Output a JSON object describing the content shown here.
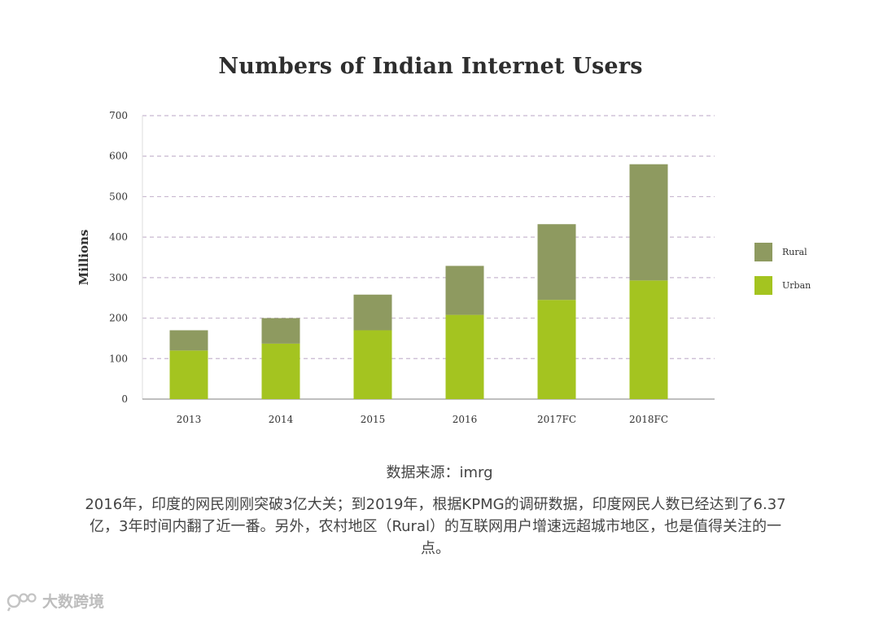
{
  "source_text": "数据来源：imrg",
  "caption": "2016年，印度的网民刚刚突破3亿大关；到2019年，根据KPMG的调研数据，印度网民人数已经达到了6.37亿，3年时间内翻了近一番。另外，农村地区（Rural）的互联网用户增速远超城市地区，也是值得关注的一点。",
  "watermark": "大数跨境",
  "colors": {
    "rural": "#8e9a60",
    "urban": "#a4c420",
    "grid": "#c8b8d0",
    "axis": "#999999"
  },
  "chart_data": {
    "type": "bar",
    "stacked": true,
    "title": "Numbers of Indian Internet Users",
    "xlabel": "",
    "ylabel": "Millions",
    "ylim": [
      0,
      700
    ],
    "yticks": [
      0,
      100,
      200,
      300,
      400,
      500,
      600,
      700
    ],
    "grid": true,
    "legend_position": "right",
    "categories": [
      "2013",
      "2014",
      "2015",
      "2016",
      "2017FC",
      "2018FC"
    ],
    "series": [
      {
        "name": "Urban",
        "values": [
          120,
          137,
          170,
          208,
          245,
          293
        ]
      },
      {
        "name": "Rural",
        "values": [
          50,
          63,
          88,
          121,
          187,
          287
        ]
      }
    ]
  }
}
